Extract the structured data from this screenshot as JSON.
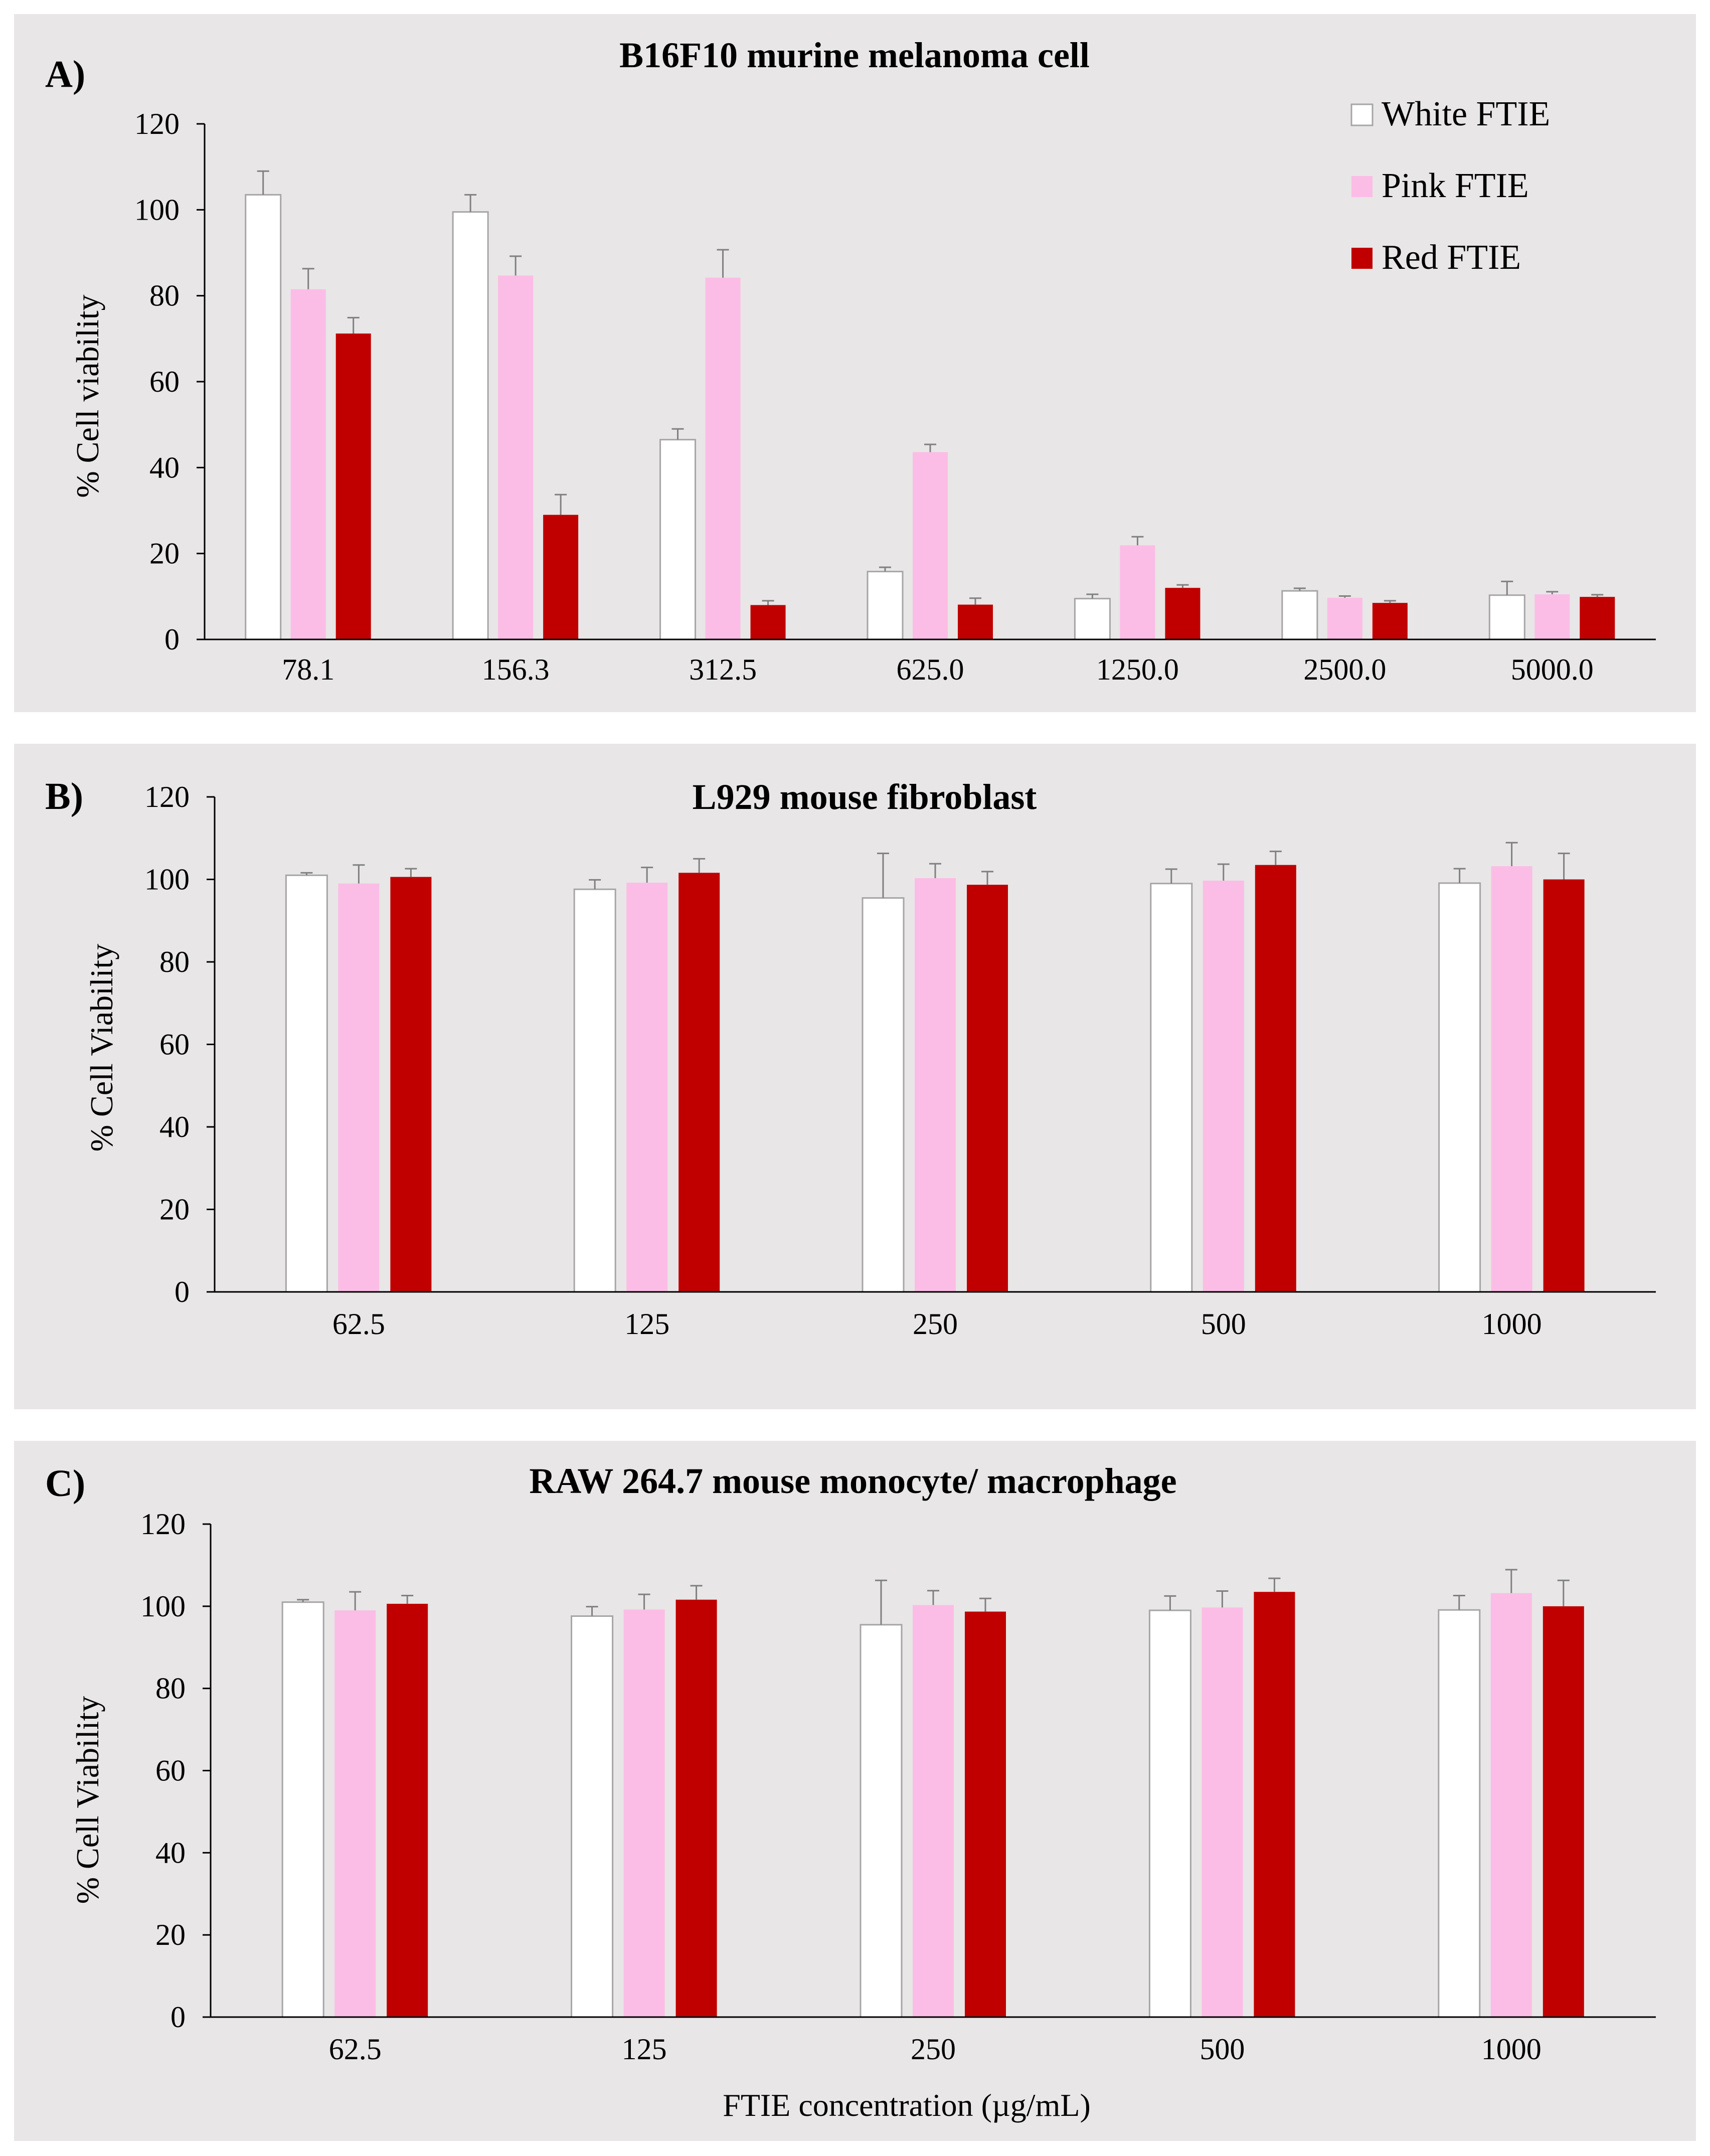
{
  "legend": [
    "White FTIE",
    "Pink FTIE",
    "Red FTIE"
  ],
  "series_colors": {
    "White FTIE": "#ffffff",
    "Pink FTIE": "#fbbde6",
    "Red FTIE": "#c00000"
  },
  "bar_outline_color": "#a6a6a6",
  "panel_background": "#e8e6e6",
  "chart_data": [
    {
      "type": "bar",
      "panel_label": "A)",
      "title": "B16F10 murine melanoma cell",
      "xlabel": "",
      "ylabel": "% Cell viability",
      "ylim": [
        0,
        120
      ],
      "yticks": [
        0,
        20,
        40,
        60,
        80,
        100,
        120
      ],
      "categories": [
        "78.1",
        "156.3",
        "312.5",
        "625.0",
        "1250.0",
        "2500.0",
        "5000.0"
      ],
      "legend_position": "top-right",
      "series": [
        {
          "name": "White FTIE",
          "values": [
            103.5,
            99.5,
            46.5,
            15.8,
            9.5,
            11.3,
            10.3
          ],
          "errors": [
            5.5,
            4.0,
            2.5,
            1.0,
            1.0,
            0.6,
            3.2
          ]
        },
        {
          "name": "Pink FTIE",
          "values": [
            81.5,
            84.7,
            84.2,
            43.6,
            21.9,
            9.7,
            10.5
          ],
          "errors": [
            4.8,
            4.5,
            6.5,
            1.8,
            2.0,
            0.4,
            0.6
          ]
        },
        {
          "name": "Red FTIE",
          "values": [
            71.2,
            29.0,
            8.0,
            8.1,
            12.0,
            8.5,
            9.9
          ],
          "errors": [
            3.7,
            4.7,
            1.0,
            1.5,
            0.7,
            0.5,
            0.5
          ]
        }
      ]
    },
    {
      "type": "bar",
      "panel_label": "B)",
      "title": "L929 mouse fibroblast",
      "xlabel": "",
      "ylabel": "% Cell Viability",
      "ylim": [
        0,
        120
      ],
      "yticks": [
        0,
        20,
        40,
        60,
        80,
        100,
        120
      ],
      "categories": [
        "62.5",
        "125",
        "250",
        "500",
        "1000"
      ],
      "series": [
        {
          "name": "White FTIE",
          "values": [
            101.0,
            97.6,
            95.5,
            99.0,
            99.1
          ],
          "errors": [
            0.6,
            2.3,
            10.8,
            3.5,
            3.5
          ]
        },
        {
          "name": "Pink FTIE",
          "values": [
            99.0,
            99.2,
            100.3,
            99.7,
            103.2
          ],
          "errors": [
            4.5,
            3.7,
            3.5,
            4.0,
            5.7
          ]
        },
        {
          "name": "Red FTIE",
          "values": [
            100.6,
            101.6,
            98.7,
            103.5,
            100.0
          ],
          "errors": [
            2.0,
            3.4,
            3.2,
            3.3,
            6.3
          ]
        }
      ]
    },
    {
      "type": "bar",
      "panel_label": "C)",
      "title": "RAW 264.7 mouse monocyte/ macrophage",
      "xlabel": "FTIE concentration (µg/mL)",
      "ylabel": "% Cell Viability",
      "ylim": [
        0,
        120
      ],
      "yticks": [
        0,
        20,
        40,
        60,
        80,
        100,
        120
      ],
      "categories": [
        "62.5",
        "125",
        "250",
        "500",
        "1000"
      ],
      "series": [
        {
          "name": "White FTIE",
          "values": [
            101.0,
            97.6,
            95.5,
            99.0,
            99.1
          ],
          "errors": [
            0.6,
            2.3,
            10.8,
            3.5,
            3.5
          ]
        },
        {
          "name": "Pink FTIE",
          "values": [
            99.0,
            99.2,
            100.3,
            99.7,
            103.2
          ],
          "errors": [
            4.5,
            3.7,
            3.5,
            4.0,
            5.7
          ]
        },
        {
          "name": "Red FTIE",
          "values": [
            100.6,
            101.6,
            98.7,
            103.5,
            100.0
          ],
          "errors": [
            2.0,
            3.4,
            3.2,
            3.3,
            6.3
          ]
        }
      ]
    }
  ]
}
